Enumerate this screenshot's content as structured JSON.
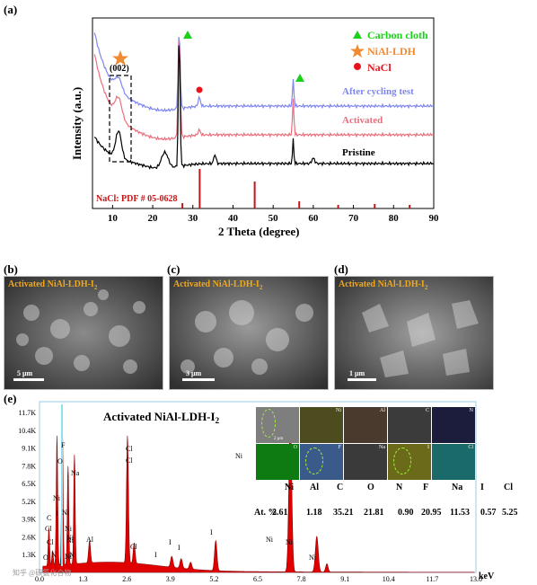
{
  "figure": {
    "panel_a": "(a)",
    "panel_b": "(b)",
    "panel_c": "(c)",
    "panel_d": "(d)",
    "panel_e": "(e)"
  },
  "xrd": {
    "ylabel": "Intensity (a.u.)",
    "xlabel": "2 Theta (degree)",
    "xticks": [
      "10",
      "20",
      "30",
      "40",
      "50",
      "60",
      "70",
      "80",
      "90"
    ],
    "legend": [
      {
        "marker": "triangle",
        "label": "Carbon cloth",
        "color": "#19d119"
      },
      {
        "marker": "star",
        "label": "NiAl-LDH",
        "color": "#f08a33"
      },
      {
        "marker": "circle",
        "label": "NaCl",
        "color": "#e8141c"
      }
    ],
    "curve_labels": {
      "after": "After cycling test",
      "activated": "Activated",
      "pristine": "Pristine"
    },
    "annotation_002": "(002)",
    "reference": "NaCl: PDF # 05-0628",
    "colors": {
      "after": "#7f86f0",
      "activated": "#ea6f7c",
      "pristine": "#000000",
      "ref": "#c21616"
    }
  },
  "sem": [
    {
      "title": "Activated NiAl-LDH-I",
      "sub": "2",
      "scale": "5 μm"
    },
    {
      "title": "Activated NiAl-LDH-I",
      "sub": "2",
      "scale": "3 μm"
    },
    {
      "title": "Activated NiAl-LDH-I",
      "sub": "2",
      "scale": "1 μm"
    }
  ],
  "eds": {
    "title": "Activated NiAl-LDH-I",
    "title_sub": "2",
    "unit": "keV",
    "yticks": [
      "1.3K",
      "2.6K",
      "3.9K",
      "5.2K",
      "6.5K",
      "7.8K",
      "9.1K",
      "10.4K",
      "11.7K"
    ],
    "xticks": [
      "0.0",
      "1.3",
      "2.6",
      "3.9",
      "5.2",
      "6.5",
      "7.8",
      "9.1",
      "10.4",
      "11.7",
      "13.0"
    ],
    "peak_labels": [
      "O",
      "F",
      "Na",
      "Cl",
      "Cl",
      "Ni",
      "Ni",
      "Ni",
      "Ni",
      "Ni",
      "Ni",
      "I",
      "C",
      "Cl",
      "Al",
      "Cl",
      "I",
      "I",
      "I",
      "I",
      "Ni",
      "Ni",
      "Ni",
      "Cl",
      "N",
      "Ni",
      "O",
      "N"
    ],
    "maps": [
      "Ni",
      "Al",
      "C",
      "N",
      "O",
      "F",
      "Na",
      "I",
      "Cl"
    ],
    "map_scale": "2 μm",
    "table_head": [
      "Ni",
      "Al",
      "C",
      "O",
      "N",
      "F",
      "Na",
      "I",
      "Cl"
    ],
    "table_row_label": "At. %",
    "table_values": [
      "2.61",
      "1.18",
      "35.21",
      "21.81",
      "0.90",
      "20.95",
      "11.53",
      "0.57",
      "5.25"
    ]
  },
  "watermark": "知乎 @碳氢化合物"
}
